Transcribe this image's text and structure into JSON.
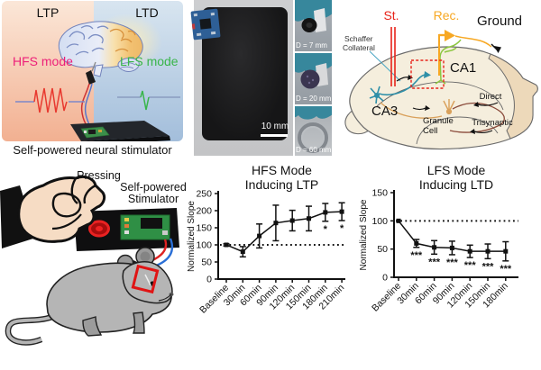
{
  "panel_stimulator": {
    "ltp_label": "LTP",
    "ltd_label": "LTD",
    "hfs_label": "HFS mode",
    "lfs_label": "LFS mode",
    "caption": "Self-powered neural stimulator",
    "colors": {
      "hfs_text": "#ed1e79",
      "lfs_text": "#39b54a",
      "ltp_bg_top": "#fbe7d8",
      "ltp_bg_bottom": "#f2b091",
      "ltd_bg_top": "#d8e5f0",
      "ltd_bg_bottom": "#a3bedb"
    }
  },
  "panel_flexible_device": {
    "scale_label": "10 mm",
    "bend_photos": [
      {
        "label": "D = 7 mm"
      },
      {
        "label": "D = 20 mm"
      },
      {
        "label": "D = 60 mm"
      }
    ]
  },
  "panel_hippocampus": {
    "st_label": "St.",
    "rec_label": "Rec.",
    "ground_label": "Ground",
    "schaffer_line1": "Schaffer",
    "schaffer_line2": "Collateral",
    "ca1_label": "CA1",
    "ca3_label": "CA3",
    "granule_line1": "Granule",
    "granule_line2": "Cell",
    "direct_label": "Direct",
    "trisynaptic_label": "Trisynaptic",
    "colors": {
      "st": "#e8231a",
      "rec": "#f7a823",
      "schaffer": "#4aa6c4",
      "green_neuron": "#8cc63f",
      "body": "#f5eedd",
      "side": "#edd9ba"
    }
  },
  "panel_mouse": {
    "pressing_label": "Pressing",
    "stimulator_line1": "Self-powered",
    "stimulator_line2": "Stimulator"
  },
  "chart_data": [
    {
      "type": "line",
      "title_line1": "HFS Mode",
      "title_line2": "Inducing LTP",
      "ylabel": "Normalized Slope",
      "ylim": [
        0,
        250
      ],
      "yticks": [
        0,
        50,
        100,
        150,
        200,
        250
      ],
      "categories": [
        "Baseline",
        "30min",
        "60min",
        "90min",
        "120min",
        "150min",
        "180min",
        "210min"
      ],
      "values": [
        100,
        80,
        126,
        164,
        171,
        177,
        195,
        197
      ],
      "errors": [
        3,
        15,
        35,
        52,
        30,
        36,
        26,
        26
      ],
      "significance": [
        "",
        "",
        "",
        "",
        "",
        "",
        "*",
        "*"
      ],
      "reference_line": 100,
      "legend": null,
      "grid": false
    },
    {
      "type": "line",
      "title_line1": "LFS Mode",
      "title_line2": "Inducing LTD",
      "ylabel": "Normalized Slope",
      "ylim": [
        0,
        150
      ],
      "yticks": [
        0,
        50,
        100,
        150
      ],
      "categories": [
        "Baseline",
        "30min",
        "60min",
        "90min",
        "120min",
        "150min",
        "180min"
      ],
      "values": [
        100,
        60,
        53,
        52,
        46,
        46,
        46
      ],
      "errors": [
        0,
        7,
        12,
        12,
        11,
        13,
        17
      ],
      "significance": [
        "",
        "***",
        "***",
        "***",
        "***",
        "***",
        "***"
      ],
      "reference_line": 100,
      "legend": null,
      "grid": false
    }
  ]
}
